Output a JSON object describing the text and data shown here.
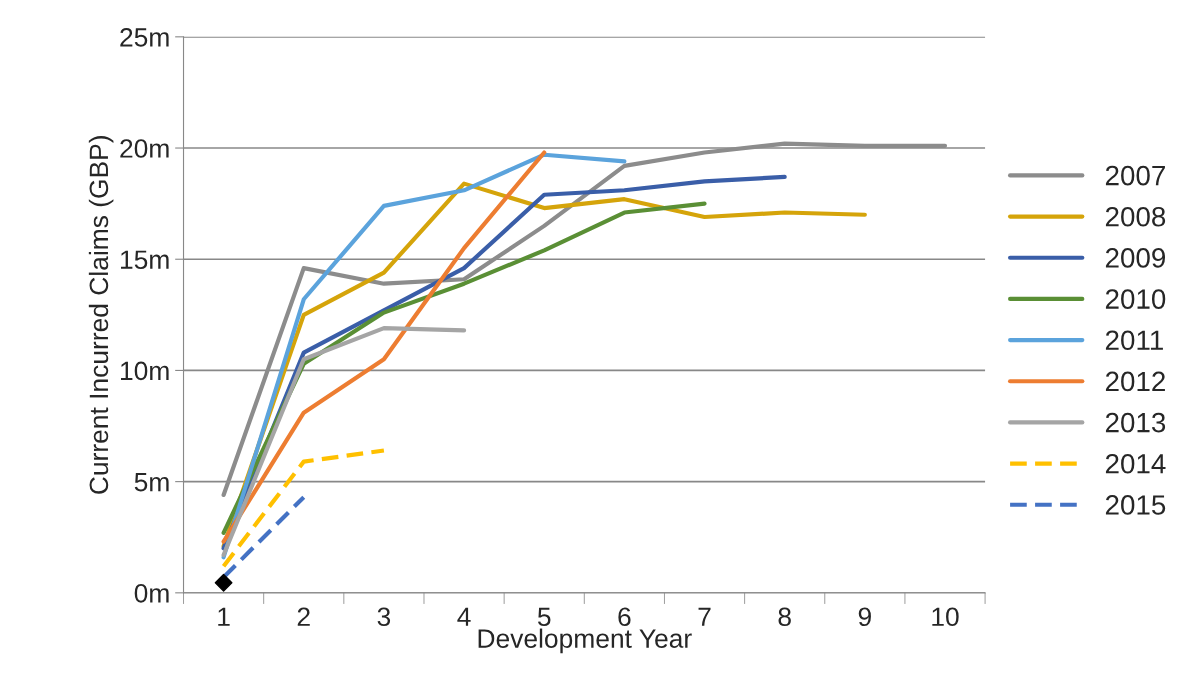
{
  "chart_data": {
    "type": "line",
    "xlabel": "Development Year",
    "ylabel": "Current Incurred Claims (GBP)",
    "categories": [
      "1",
      "2",
      "3",
      "4",
      "5",
      "6",
      "7",
      "8",
      "9",
      "10"
    ],
    "ylim": [
      0,
      25
    ],
    "yticks": [
      {
        "value": 0,
        "label": "0m"
      },
      {
        "value": 5,
        "label": "5m"
      },
      {
        "value": 10,
        "label": "10m"
      },
      {
        "value": 15,
        "label": "15m"
      },
      {
        "value": 20,
        "label": "20m"
      },
      {
        "value": 25,
        "label": "25m"
      }
    ],
    "grid": "y",
    "legend": "right",
    "marker": "none",
    "series": [
      {
        "name": "2007",
        "color": "#8c8c8c",
        "values": [
          4.4,
          14.6,
          13.9,
          14.1,
          16.5,
          19.2,
          19.8,
          20.2,
          20.1,
          20.1
        ]
      },
      {
        "name": "2008",
        "color": "#d5a40a",
        "values": [
          2.1,
          12.5,
          14.4,
          18.4,
          17.3,
          17.7,
          16.9,
          17.1,
          17.0,
          null
        ]
      },
      {
        "name": "2009",
        "color": "#3a5ea8",
        "values": [
          2.0,
          10.8,
          12.7,
          14.6,
          17.9,
          18.1,
          18.5,
          18.7,
          null,
          null
        ]
      },
      {
        "name": "2010",
        "color": "#5a8f35",
        "values": [
          2.7,
          10.3,
          12.6,
          13.9,
          15.4,
          17.1,
          17.5,
          null,
          null,
          null
        ]
      },
      {
        "name": "2011",
        "color": "#5ba3dc",
        "values": [
          1.6,
          13.2,
          17.4,
          18.1,
          19.7,
          19.4,
          null,
          null,
          null,
          null
        ]
      },
      {
        "name": "2012",
        "color": "#ed7d31",
        "values": [
          2.3,
          8.1,
          10.5,
          15.5,
          19.8,
          null,
          null,
          null,
          null,
          null
        ]
      },
      {
        "name": "2013",
        "color": "#a5a5a5",
        "values": [
          1.7,
          10.5,
          11.9,
          11.8,
          null,
          null,
          null,
          null,
          null,
          null
        ]
      },
      {
        "name": "2014",
        "color": "#ffc000",
        "line_style": "dashed",
        "values": [
          1.2,
          5.9,
          6.4,
          null,
          null,
          null,
          null,
          null,
          null,
          null
        ]
      },
      {
        "name": "2015",
        "color": "#4472c4",
        "line_style": "dashed",
        "values": [
          0.7,
          4.3,
          null,
          null,
          null,
          null,
          null,
          null,
          null,
          null
        ]
      },
      {
        "type": "scatter",
        "color": "#000000",
        "marker": "diamond",
        "values": [
          0.45,
          null,
          null,
          null,
          null,
          null,
          null,
          null,
          null,
          null
        ]
      }
    ]
  }
}
